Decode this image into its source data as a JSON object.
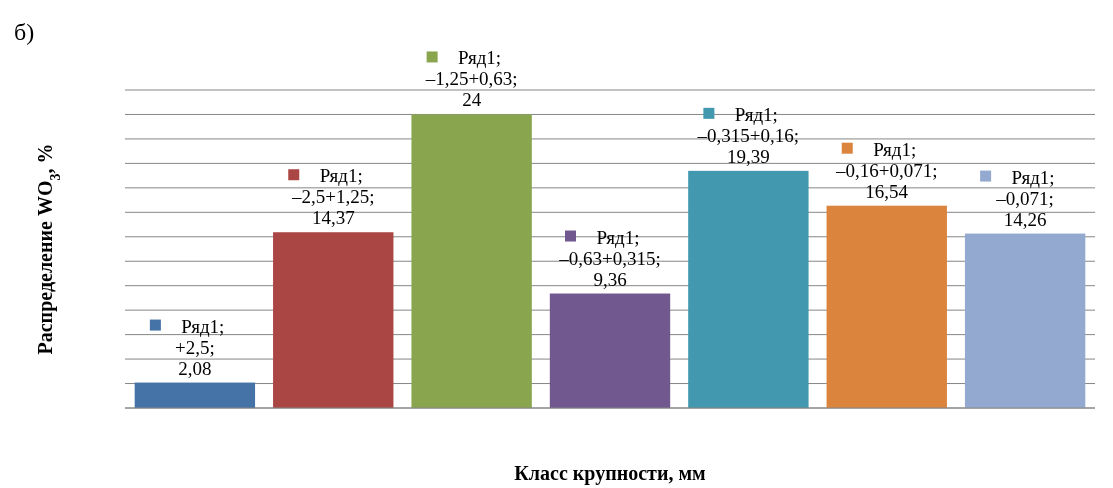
{
  "chart_data": {
    "type": "bar",
    "xlabel": "Класс крупности, мм",
    "ylabel": "Распределение WO$_{3}$, %",
    "annotations": [
      "б)"
    ],
    "categories": [
      null,
      null,
      null,
      null,
      null,
      null,
      null
    ],
    "values": [
      2.08,
      14.37,
      24,
      9.36,
      19.39,
      16.54,
      14.26
    ],
    "colors": [
      "#4572a7",
      "#aa4643",
      "#89a54e",
      "#71588f",
      "#4198af",
      "#db843d",
      "#93a9cf"
    ],
    "value_labels": [
      "Ряд1; +2,5; 2,08",
      "Ряд1; –2,5+1,25; 14,37",
      "Ряд1; –1,25+0,63; 24",
      "Ряд1; –0,63+0,315; 9,36",
      "Ряд1; –0,315+0,16; 19,39",
      "Ряд1; –0,16+0,071; 16,54",
      "Ряд1; –0,071; 14,26"
    ],
    "ylim": [
      0,
      26
    ],
    "yticks": [
      {
        "value": 0,
        "label": null
      },
      {
        "value": 2,
        "label": null
      },
      {
        "value": 4,
        "label": null
      },
      {
        "value": 6,
        "label": null
      },
      {
        "value": 8,
        "label": null
      },
      {
        "value": 10,
        "label": null
      },
      {
        "value": 12,
        "label": null
      },
      {
        "value": 14,
        "label": null
      },
      {
        "value": 16,
        "label": null
      },
      {
        "value": 18,
        "label": null
      },
      {
        "value": 20,
        "label": null
      },
      {
        "value": 22,
        "label": null
      },
      {
        "value": 24,
        "label": null
      },
      {
        "value": 26,
        "label": null
      }
    ],
    "grid": "y"
  }
}
